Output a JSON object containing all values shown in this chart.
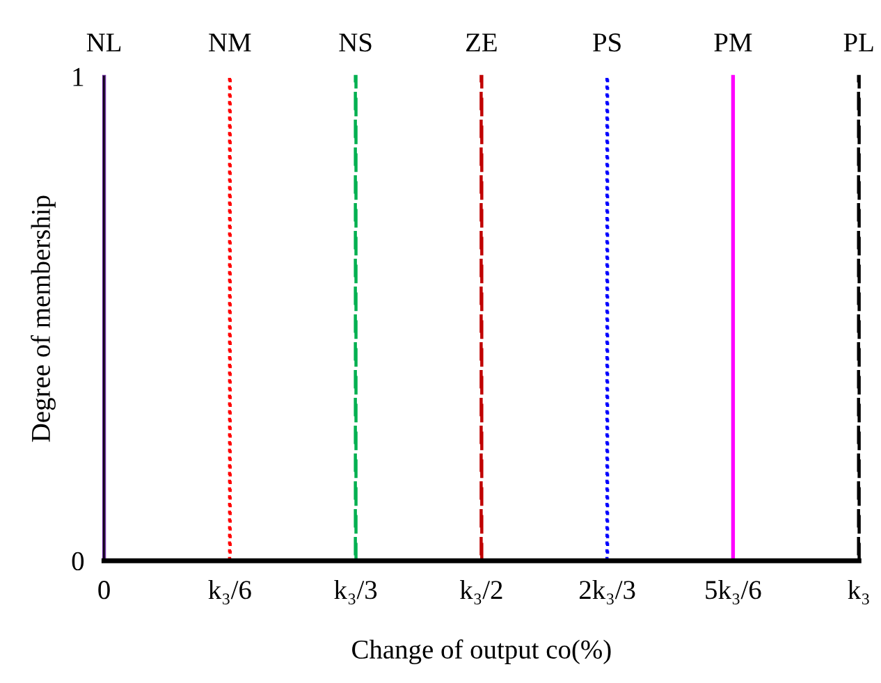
{
  "chart_data": {
    "type": "bar",
    "xlabel": "Change of output co(%)",
    "ylabel": "Degree of membership",
    "categories": [
      "0",
      "k₃/6",
      "k₃/3",
      "k₃/2",
      "2k₃/3",
      "5k₃/6",
      "k₃"
    ],
    "series": [
      {
        "name": "NL",
        "color": "#7030a0",
        "line_style": "solid",
        "values": [
          1,
          null,
          null,
          null,
          null,
          null,
          null
        ]
      },
      {
        "name": "NM",
        "color": "#ff0000",
        "line_style": "dotted",
        "values": [
          null,
          1,
          null,
          null,
          null,
          null,
          null
        ]
      },
      {
        "name": "NS",
        "color": "#00b050",
        "line_style": "dashed",
        "values": [
          null,
          null,
          1,
          null,
          null,
          null,
          null
        ]
      },
      {
        "name": "ZE",
        "color": "#c00000",
        "line_style": "dashed",
        "values": [
          null,
          null,
          null,
          1,
          null,
          null,
          null
        ]
      },
      {
        "name": "PS",
        "color": "#0000ff",
        "line_style": "dotted",
        "values": [
          null,
          null,
          null,
          null,
          1,
          null,
          null
        ]
      },
      {
        "name": "PM",
        "color": "#ff00ff",
        "line_style": "solid",
        "values": [
          null,
          null,
          null,
          null,
          null,
          1,
          null
        ]
      },
      {
        "name": "PL",
        "color": "#000000",
        "line_style": "dashed",
        "values": [
          null,
          null,
          null,
          null,
          null,
          null,
          1
        ]
      }
    ],
    "ylim": [
      0,
      1
    ],
    "yticks": [
      0,
      1
    ],
    "grid": false,
    "legend": false
  }
}
